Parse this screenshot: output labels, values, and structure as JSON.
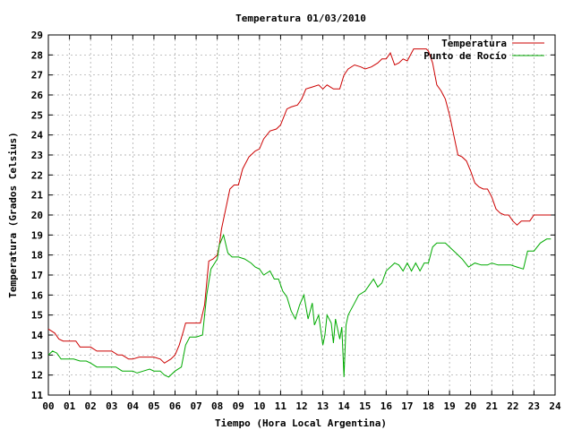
{
  "chart_data": {
    "type": "line",
    "title": "Temperatura 01/03/2010",
    "xlabel": "Tiempo (Hora Local Argentina)",
    "ylabel": "Temperatura (Grados Celsius)",
    "xlim": [
      0,
      24
    ],
    "ylim": [
      11,
      29
    ],
    "x_ticks": [
      "00",
      "01",
      "02",
      "03",
      "04",
      "05",
      "06",
      "07",
      "08",
      "09",
      "10",
      "11",
      "12",
      "13",
      "14",
      "15",
      "16",
      "17",
      "18",
      "19",
      "20",
      "21",
      "22",
      "23",
      "24"
    ],
    "y_ticks": [
      "11",
      "12",
      "13",
      "14",
      "15",
      "16",
      "17",
      "18",
      "19",
      "20",
      "21",
      "22",
      "23",
      "24",
      "25",
      "26",
      "27",
      "28",
      "29"
    ],
    "grid": true,
    "legend_position": "top-right",
    "series": [
      {
        "name": "Temperatura",
        "color": "#cc0000",
        "x": [
          0,
          0.3,
          0.5,
          0.7,
          1.0,
          1.3,
          1.5,
          1.8,
          2.0,
          2.3,
          2.5,
          2.8,
          3.0,
          3.3,
          3.5,
          3.8,
          4.0,
          4.3,
          4.5,
          4.8,
          5.0,
          5.3,
          5.5,
          5.8,
          6.0,
          6.2,
          6.4,
          6.5,
          6.7,
          7.0,
          7.2,
          7.4,
          7.6,
          7.8,
          8.0,
          8.1,
          8.2,
          8.4,
          8.6,
          8.8,
          9.0,
          9.2,
          9.5,
          9.8,
          10.0,
          10.2,
          10.5,
          10.8,
          11.0,
          11.3,
          11.5,
          11.8,
          12.0,
          12.2,
          12.5,
          12.8,
          13.0,
          13.2,
          13.5,
          13.8,
          14.0,
          14.2,
          14.5,
          14.8,
          15.0,
          15.3,
          15.6,
          15.8,
          16.0,
          16.2,
          16.4,
          16.6,
          16.8,
          17.0,
          17.3,
          17.6,
          17.9,
          18.0,
          18.2,
          18.4,
          18.6,
          18.8,
          19.0,
          19.2,
          19.4,
          19.6,
          19.8,
          20.0,
          20.2,
          20.4,
          20.6,
          20.8,
          21.0,
          21.2,
          21.4,
          21.6,
          21.8,
          22.0,
          22.2,
          22.4,
          22.6,
          22.8,
          23.0,
          23.2,
          23.5,
          23.8
        ],
        "values": [
          14.3,
          14.1,
          13.8,
          13.7,
          13.7,
          13.7,
          13.4,
          13.4,
          13.4,
          13.2,
          13.2,
          13.2,
          13.2,
          13.0,
          13.0,
          12.8,
          12.8,
          12.9,
          12.9,
          12.9,
          12.9,
          12.8,
          12.6,
          12.8,
          13.0,
          13.5,
          14.2,
          14.6,
          14.6,
          14.6,
          14.6,
          15.5,
          17.7,
          17.8,
          18.0,
          18.5,
          19.3,
          20.3,
          21.3,
          21.5,
          21.5,
          22.3,
          22.9,
          23.2,
          23.3,
          23.8,
          24.2,
          24.3,
          24.5,
          25.3,
          25.4,
          25.5,
          25.8,
          26.3,
          26.4,
          26.5,
          26.3,
          26.5,
          26.3,
          26.3,
          27.0,
          27.3,
          27.5,
          27.4,
          27.3,
          27.4,
          27.6,
          27.8,
          27.8,
          28.1,
          27.5,
          27.6,
          27.8,
          27.7,
          28.3,
          28.3,
          28.3,
          28.2,
          27.6,
          26.5,
          26.2,
          25.8,
          25.0,
          24.0,
          23.0,
          22.9,
          22.7,
          22.2,
          21.6,
          21.4,
          21.3,
          21.3,
          20.9,
          20.3,
          20.1,
          20.0,
          20.0,
          19.7,
          19.5,
          19.7,
          19.7,
          19.7,
          20.0,
          20.0,
          20.0,
          20.0
        ],
        "smooth": false
      },
      {
        "name": "Punto de Rocío",
        "color": "#00aa00",
        "x": [
          0,
          0.2,
          0.4,
          0.6,
          0.9,
          1.2,
          1.5,
          1.8,
          2.0,
          2.3,
          2.6,
          2.9,
          3.2,
          3.5,
          3.8,
          4.0,
          4.2,
          4.5,
          4.8,
          5.0,
          5.3,
          5.5,
          5.7,
          6.0,
          6.3,
          6.5,
          6.7,
          7.0,
          7.3,
          7.5,
          7.7,
          8.0,
          8.1,
          8.3,
          8.5,
          8.7,
          9.0,
          9.3,
          9.6,
          9.8,
          10.0,
          10.2,
          10.5,
          10.7,
          10.9,
          11.1,
          11.3,
          11.5,
          11.7,
          11.9,
          12.1,
          12.3,
          12.5,
          12.6,
          12.8,
          13.0,
          13.1,
          13.2,
          13.4,
          13.5,
          13.6,
          13.8,
          13.9,
          14.0,
          14.1,
          14.2,
          14.3,
          14.5,
          14.7,
          15.0,
          15.2,
          15.4,
          15.6,
          15.8,
          16.0,
          16.2,
          16.4,
          16.6,
          16.8,
          17.0,
          17.2,
          17.4,
          17.6,
          17.8,
          18.0,
          18.2,
          18.4,
          18.6,
          18.8,
          19.0,
          19.3,
          19.6,
          19.9,
          20.2,
          20.5,
          20.8,
          21.0,
          21.3,
          21.6,
          21.9,
          22.2,
          22.5,
          22.7,
          23.0,
          23.3,
          23.6,
          23.8
        ],
        "values": [
          13.0,
          13.2,
          13.1,
          12.8,
          12.8,
          12.8,
          12.7,
          12.7,
          12.6,
          12.4,
          12.4,
          12.4,
          12.4,
          12.2,
          12.2,
          12.2,
          12.1,
          12.2,
          12.3,
          12.2,
          12.2,
          12.0,
          11.9,
          12.2,
          12.4,
          13.5,
          13.9,
          13.9,
          14.0,
          16.0,
          17.3,
          17.8,
          18.5,
          19.0,
          18.1,
          17.9,
          17.9,
          17.8,
          17.6,
          17.4,
          17.3,
          17.0,
          17.2,
          16.8,
          16.8,
          16.2,
          15.9,
          15.2,
          14.8,
          15.5,
          16.0,
          14.8,
          15.6,
          14.5,
          15.0,
          13.5,
          14.0,
          15.0,
          14.6,
          13.6,
          14.8,
          13.8,
          14.4,
          11.9,
          14.5,
          15.0,
          15.2,
          15.6,
          16.0,
          16.2,
          16.5,
          16.8,
          16.4,
          16.6,
          17.2,
          17.4,
          17.6,
          17.5,
          17.2,
          17.6,
          17.2,
          17.6,
          17.2,
          17.6,
          17.6,
          18.4,
          18.6,
          18.6,
          18.6,
          18.4,
          18.1,
          17.8,
          17.4,
          17.6,
          17.5,
          17.5,
          17.6,
          17.5,
          17.5,
          17.5,
          17.4,
          17.3,
          18.2,
          18.2,
          18.6,
          18.8,
          18.8
        ],
        "smooth": false
      }
    ]
  }
}
